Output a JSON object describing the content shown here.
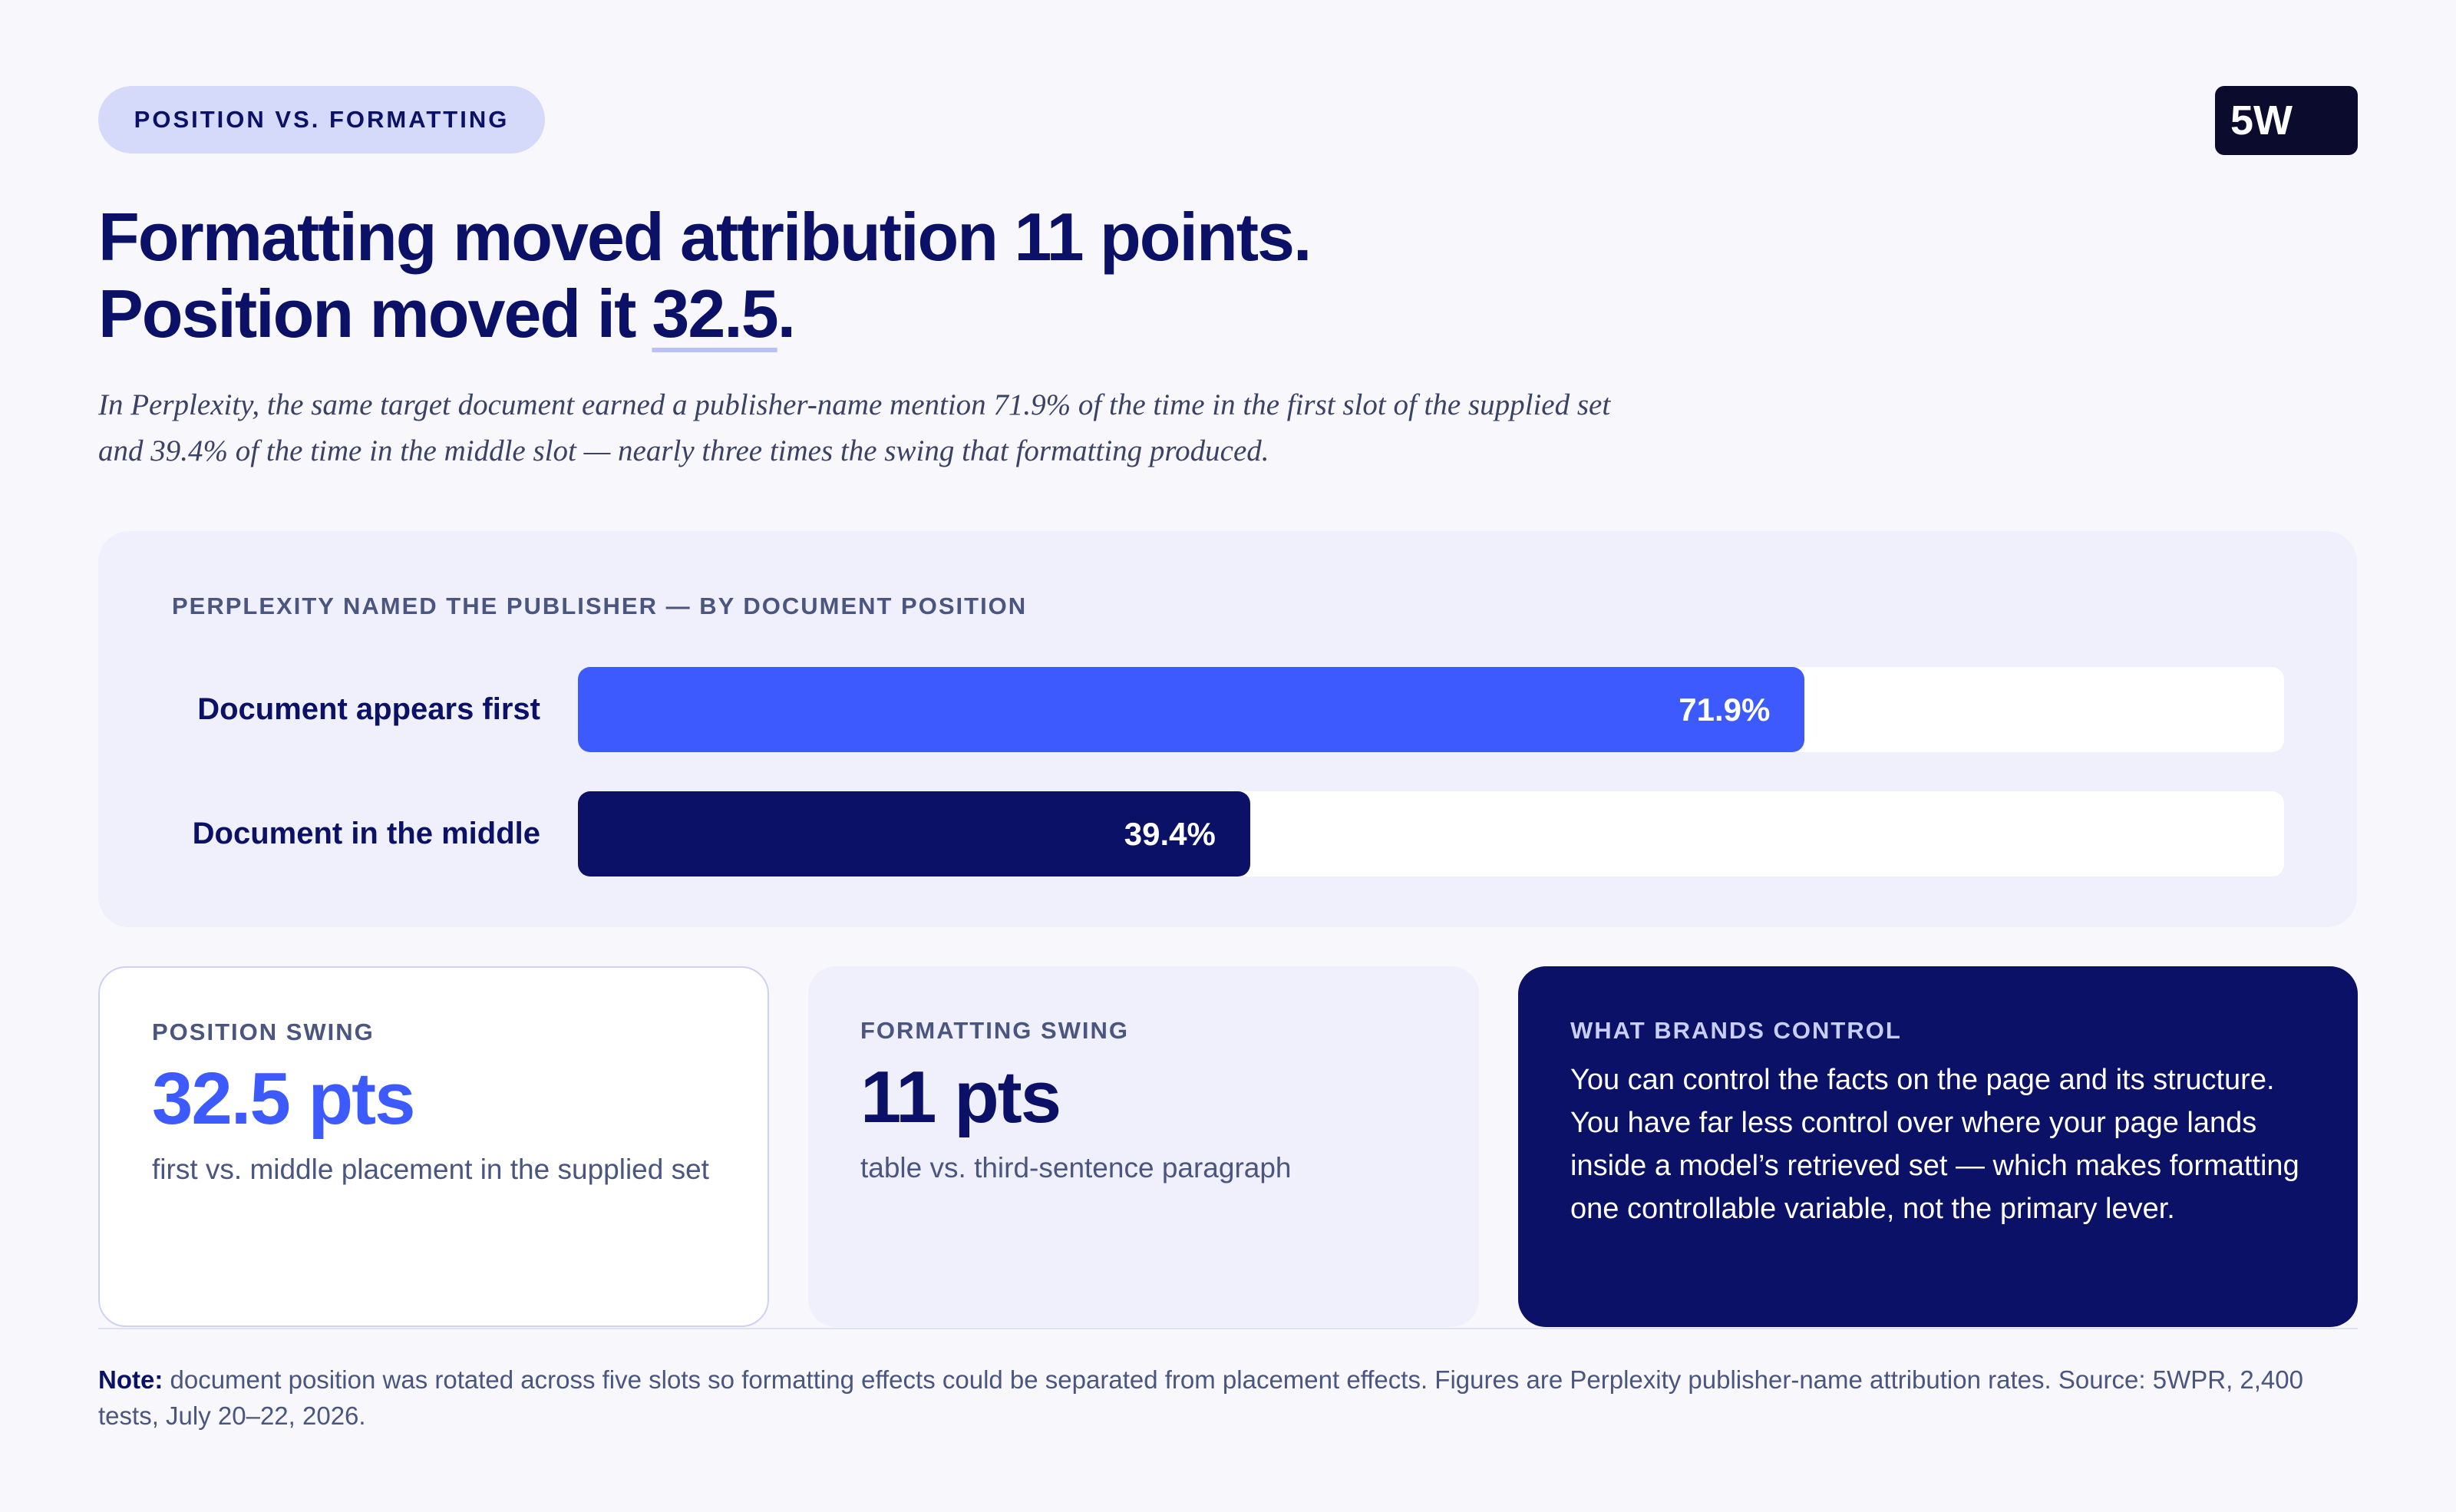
{
  "badge": "POSITION VS. FORMATTING",
  "logo": "5W",
  "headline": {
    "line1": "Formatting moved attribution 11 points.",
    "line2_lead": "Position moved it",
    "line2_emphasis": "32.5",
    "line2_end": "."
  },
  "subtitle": "In Perplexity, the same target document earned a publisher-name mention 71.9% of the time in the first slot of the supplied set and 39.4% of the time in the middle slot — nearly three times the swing that formatting produced.",
  "chart_data": {
    "type": "bar",
    "orientation": "horizontal",
    "title": "PERPLEXITY NAMED THE PUBLISHER — BY DOCUMENT POSITION",
    "categories": [
      "Document appears first",
      "Document in the middle"
    ],
    "values": [
      71.9,
      39.4
    ],
    "value_labels": [
      "71.9%",
      "39.4%"
    ],
    "colors": [
      "#3d5afe",
      "#0a1166"
    ],
    "xlim": [
      0,
      100
    ]
  },
  "cards": [
    {
      "label": "POSITION SWING",
      "value": "32.5 pts",
      "text": "first vs. middle placement in the supplied set"
    },
    {
      "label": "FORMATTING SWING",
      "value": "11 pts",
      "text": "table vs. third-sentence paragraph"
    },
    {
      "label": "WHAT BRANDS CONTROL",
      "text": "You can control the facts on the page and its structure. You have far less control over where your page lands inside a model’s retrieved set — which makes formatting one controllable variable, not the primary lever."
    }
  ],
  "note": {
    "lead": "Note:",
    "text": "document position was rotated across five slots so formatting effects could be separated from placement effects. Figures are Perplexity publisher-name attribution rates. Source: 5WPR, 2,400 tests, July 20–22, 2026."
  }
}
